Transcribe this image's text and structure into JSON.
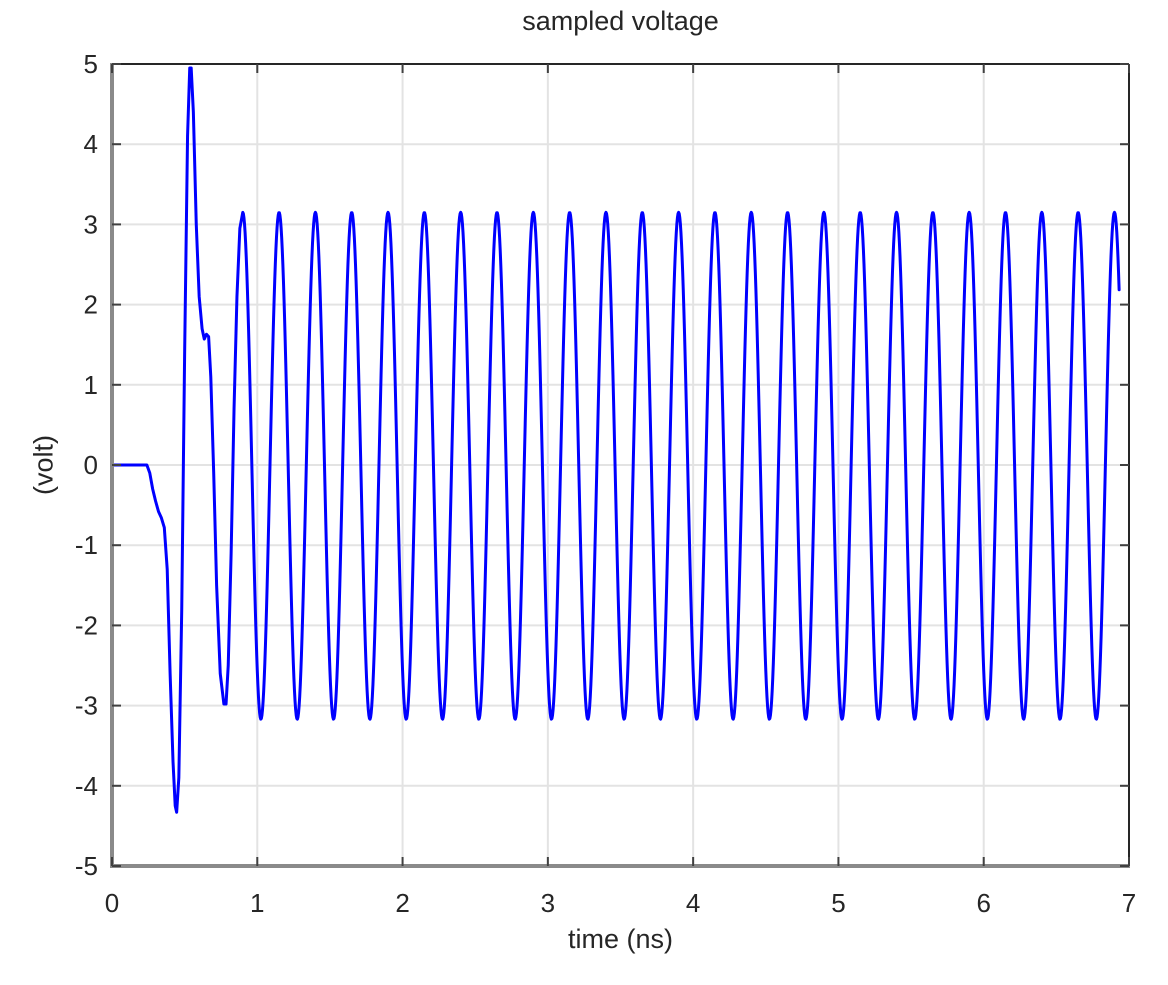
{
  "chart_data": {
    "type": "line",
    "title": "sampled voltage",
    "xlabel": "time (ns)",
    "ylabel": "(volt)",
    "xlim": [
      0,
      7
    ],
    "ylim": [
      -5,
      5
    ],
    "xticks": [
      0,
      1,
      2,
      3,
      4,
      5,
      6,
      7
    ],
    "yticks": [
      -5,
      -4,
      -3,
      -2,
      -1,
      0,
      1,
      2,
      3,
      4,
      5
    ],
    "grid": true,
    "legend": null,
    "series": [
      {
        "name": "sampled voltage",
        "color": "#0000ff",
        "line_width": 3,
        "transient_points": [
          [
            0.0,
            0.0
          ],
          [
            0.24,
            0.0
          ],
          [
            0.26,
            -0.1
          ],
          [
            0.28,
            -0.3
          ],
          [
            0.3,
            -0.45
          ],
          [
            0.32,
            -0.58
          ],
          [
            0.34,
            -0.66
          ],
          [
            0.36,
            -0.78
          ],
          [
            0.38,
            -1.3
          ],
          [
            0.4,
            -2.6
          ],
          [
            0.42,
            -3.7
          ],
          [
            0.435,
            -4.25
          ],
          [
            0.445,
            -4.33
          ],
          [
            0.46,
            -3.9
          ],
          [
            0.48,
            -1.8
          ],
          [
            0.5,
            1.4
          ],
          [
            0.52,
            4.1
          ],
          [
            0.535,
            4.95
          ],
          [
            0.545,
            4.95
          ],
          [
            0.56,
            4.4
          ],
          [
            0.58,
            3.0
          ],
          [
            0.6,
            2.1
          ],
          [
            0.62,
            1.7
          ],
          [
            0.635,
            1.57
          ],
          [
            0.65,
            1.63
          ],
          [
            0.665,
            1.6
          ],
          [
            0.68,
            1.1
          ],
          [
            0.7,
            -0.1
          ],
          [
            0.72,
            -1.5
          ],
          [
            0.745,
            -2.6
          ],
          [
            0.77,
            -2.98
          ],
          [
            0.785,
            -2.98
          ],
          [
            0.8,
            -2.5
          ],
          [
            0.82,
            -1.1
          ],
          [
            0.84,
            0.7
          ],
          [
            0.86,
            2.1
          ],
          [
            0.88,
            2.95
          ],
          [
            0.9,
            3.15
          ]
        ],
        "steady_state": {
          "start_time_ns": 0.9,
          "end_time_ns": 6.935,
          "amplitude_v": 3.15,
          "frequency_ghz": 4.0,
          "period_ns": 0.25,
          "waveform": "cosine",
          "first_peak_ns": 0.9,
          "peak_v": 3.15,
          "trough_v": -3.17,
          "end_value_v": 1.95
        },
        "key_features": {
          "initial_flat_until_ns": 0.24,
          "min_v": -4.33,
          "min_at_ns": 0.44,
          "max_v": 5.0,
          "max_at_ns": 0.54,
          "shoulder_v": 1.6,
          "shoulder_at_ns": 0.65,
          "first_trough_v": -3.0,
          "first_trough_at_ns": 0.78,
          "steady_peak_count": 25
        }
      }
    ]
  }
}
